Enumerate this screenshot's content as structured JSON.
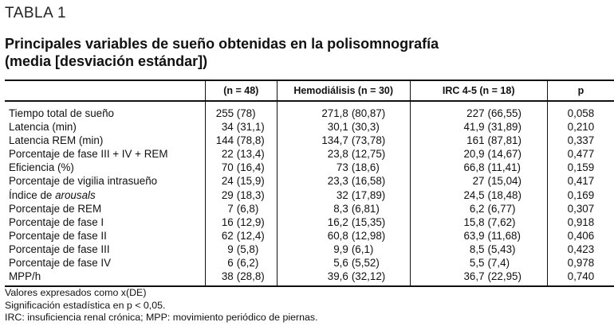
{
  "table_label": "TABLA 1",
  "title_line1": "Principales variables de sueño obtenidas en la polisomnografía",
  "title_line2": "(media [desviación estándar])",
  "columns": [
    "",
    "(n = 48)",
    "Hemodiálisis (n = 30)",
    "IRC 4-5 (n = 18)",
    "p"
  ],
  "rows": [
    {
      "label": "Tiempo total de sueño",
      "c1": [
        "255",
        "(78)"
      ],
      "c2": [
        "271,8",
        "(80,87)"
      ],
      "c3": [
        "227",
        "(66,55)"
      ],
      "p": "0,058"
    },
    {
      "label": "Latencia (min)",
      "c1": [
        "34",
        "(31,1)"
      ],
      "c2": [
        "30,1",
        "(30,3)"
      ],
      "c3": [
        "41,9",
        "(31,89)"
      ],
      "p": "0,210"
    },
    {
      "label": "Latencia REM (min)",
      "c1": [
        "144",
        "(78,8)"
      ],
      "c2": [
        "134,7",
        "(73,78)"
      ],
      "c3": [
        "161",
        "(87,81)"
      ],
      "p": "0,337"
    },
    {
      "label": "Porcentaje de fase III + IV + REM",
      "c1": [
        "22",
        "(13,4)"
      ],
      "c2": [
        "23,8",
        "(12,75)"
      ],
      "c3": [
        "20,9",
        "(14,67)"
      ],
      "p": "0,477"
    },
    {
      "label": "Eficiencia (%)",
      "c1": [
        "70",
        "(16,4)"
      ],
      "c2": [
        "73",
        "(18,6)"
      ],
      "c3": [
        "66,8",
        "(11,41)"
      ],
      "p": "0,159"
    },
    {
      "label": "Porcentaje de vigilia intrasueño",
      "c1": [
        "24",
        "(15,9)"
      ],
      "c2": [
        "23,3",
        "(16,58)"
      ],
      "c3": [
        "27",
        "(15,04)"
      ],
      "p": "0,417"
    },
    {
      "label_prefix": "Índice de ",
      "label_italic": "arousals",
      "c1": [
        "29",
        "(18,3)"
      ],
      "c2": [
        "32",
        "(17,89)"
      ],
      "c3": [
        "24,5",
        "(18,48)"
      ],
      "p": "0,169"
    },
    {
      "label": "Porcentaje de REM",
      "c1": [
        "7",
        "(6,8)"
      ],
      "c2": [
        "8,3",
        "(6,81)"
      ],
      "c3": [
        "6,2",
        "(6,77)"
      ],
      "p": "0,307"
    },
    {
      "label": "Porcentaje de fase I",
      "c1": [
        "16",
        "(12,9)"
      ],
      "c2": [
        "16,2",
        "(15,35)"
      ],
      "c3": [
        "15,8",
        "(7,62)"
      ],
      "p": "0,918"
    },
    {
      "label": "Porcentaje de fase II",
      "c1": [
        "62",
        "(12,4)"
      ],
      "c2": [
        "60,8",
        "(12,98)"
      ],
      "c3": [
        "63,9",
        "(11,68)"
      ],
      "p": "0,406"
    },
    {
      "label": "Porcentaje de fase III",
      "c1": [
        "9",
        "(5,8)"
      ],
      "c2": [
        "9,9",
        "(6,1)"
      ],
      "c3": [
        "8,5",
        "(5,43)"
      ],
      "p": "0,423"
    },
    {
      "label": "Porcentaje de fase IV",
      "c1": [
        "6",
        "(6,2)"
      ],
      "c2": [
        "5,6",
        "(5,52)"
      ],
      "c3": [
        "5,5",
        "(7,4)"
      ],
      "p": "0,978"
    },
    {
      "label": "MPP/h",
      "c1": [
        "38",
        "(28,8)"
      ],
      "c2": [
        "39,6",
        "(32,12)"
      ],
      "c3": [
        "36,7",
        "(22,95)"
      ],
      "p": "0,740"
    }
  ],
  "notes": {
    "line1_prefix": "Valores expresados como ",
    "line1_xbar": "x",
    "line1_suffix": "(DE)",
    "line2": "Significación estadística en p < 0,05.",
    "line3": "IRC: insuficiencia renal crónica; MPP: movimiento periódico de piernas."
  }
}
